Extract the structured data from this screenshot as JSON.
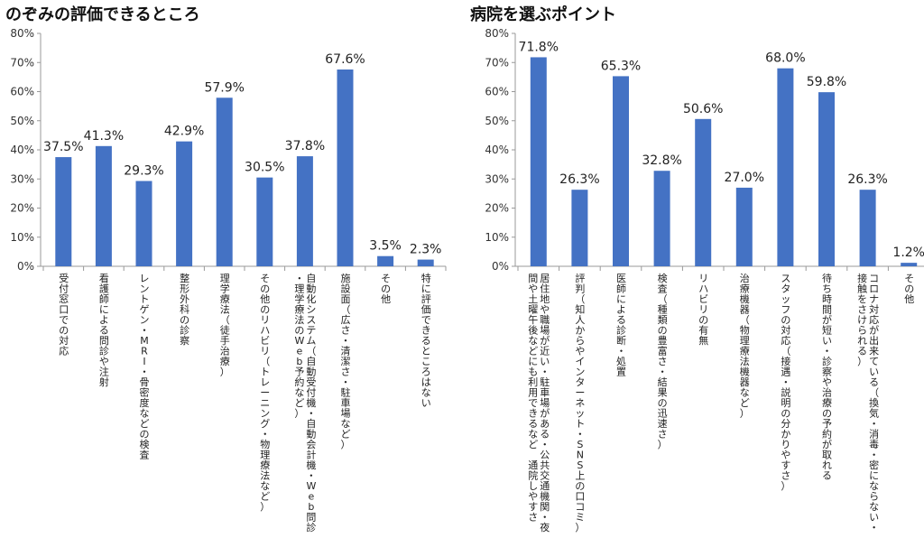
{
  "chart_data": [
    {
      "type": "bar",
      "title": "のぞみの評価できるところ",
      "categories": [
        "受付窓口での対応",
        "看護師による問診や注射",
        "レントゲン・MRI・骨密度などの検査",
        "整形外科の診察",
        "理学療法（徒手治療）",
        "その他のリハビリ（トレーニング・物理療法など）",
        "自動化システム（自動受付機・自動会計機・Web問診・理学療法のWeb予約など）",
        "施設面（広さ・清潔さ・駐車場など）",
        "その他",
        "特に評価できるところはない"
      ],
      "values": [
        37.5,
        41.3,
        29.3,
        42.9,
        57.9,
        30.5,
        37.8,
        67.6,
        3.5,
        2.3
      ],
      "data_labels": [
        "37.5%",
        "41.3%",
        "29.3%",
        "42.9%",
        "57.9%",
        "30.5%",
        "37.8%",
        "67.6%",
        "3.5%",
        "2.3%"
      ],
      "ylim": [
        0,
        80
      ],
      "yticks": [
        "0%",
        "10%",
        "20%",
        "30%",
        "40%",
        "50%",
        "60%",
        "70%",
        "80%"
      ],
      "grid": false,
      "color": "#4472C4"
    },
    {
      "type": "bar",
      "title": "病院を選ぶポイント",
      "categories": [
        "居住地や職場が近い・駐車場がある・公共交通機関・夜間や土曜午後などにも利用できるなど 通院しやすさ",
        "評判（知人からやインターネット・SNS上の口コミ）",
        "医師による診断・処置",
        "検査（種類の豊富さ・結果の迅速さ）",
        "リハビリの有無",
        "治療機器（物理療法機器など）",
        "スタッフの対応（接遇・説明の分かりやすさ）",
        "待ち時間が短い・診察や治療の予約が取れる",
        "コロナ対応が出来ている（換気・消毒・密にならない・接触をさけられる）",
        "その他"
      ],
      "values": [
        71.8,
        26.3,
        65.3,
        32.8,
        50.6,
        27.0,
        68.0,
        59.8,
        26.3,
        1.2
      ],
      "data_labels": [
        "71.8%",
        "26.3%",
        "65.3%",
        "32.8%",
        "50.6%",
        "27.0%",
        "68.0%",
        "59.8%",
        "26.3%",
        "1.2%"
      ],
      "ylim": [
        0,
        80
      ],
      "yticks": [
        "0%",
        "10%",
        "20%",
        "30%",
        "40%",
        "50%",
        "60%",
        "70%",
        "80%"
      ],
      "grid": false,
      "color": "#4472C4"
    }
  ]
}
